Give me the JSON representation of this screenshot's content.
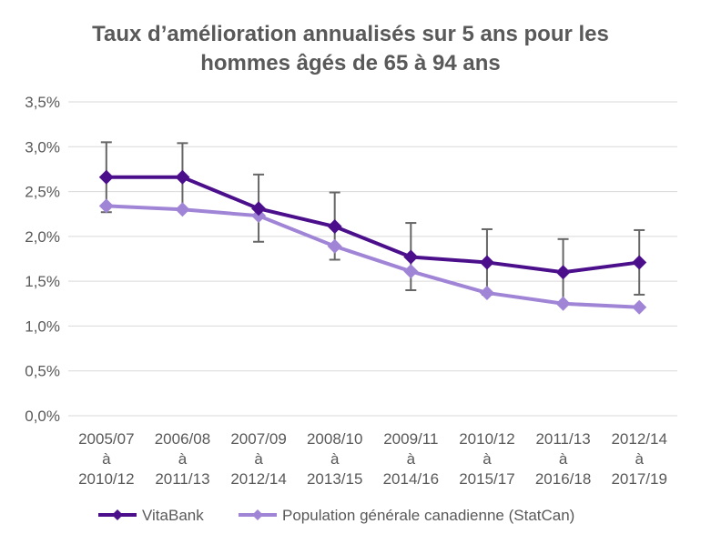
{
  "chart_data": {
    "type": "line",
    "title_lines": [
      "Taux d’amélioration annualisés sur 5 ans pour les",
      "hommes âgés de 65 à 94 ans"
    ],
    "categories": [
      [
        "2005/07",
        "à",
        "2010/12"
      ],
      [
        "2006/08",
        "à",
        "2011/13"
      ],
      [
        "2007/09",
        "à",
        "2012/14"
      ],
      [
        "2008/10",
        "à",
        "2013/15"
      ],
      [
        "2009/11",
        "à",
        "2014/16"
      ],
      [
        "2010/12",
        "à",
        "2015/17"
      ],
      [
        "2011/13",
        "à",
        "2016/18"
      ],
      [
        "2012/14",
        "à",
        "2017/19"
      ]
    ],
    "ylim": [
      0,
      3.5
    ],
    "yticks": [
      0,
      0.5,
      1.0,
      1.5,
      2.0,
      2.5,
      3.0,
      3.5
    ],
    "ytick_labels": [
      "0,0%",
      "0,5%",
      "1,0%",
      "1,5%",
      "2,0%",
      "2,5%",
      "3,0%",
      "3,5%"
    ],
    "grid": true,
    "legend_position": "bottom",
    "series": [
      {
        "name": "VitaBank",
        "color": "#4b0f8c",
        "values": [
          2.66,
          2.66,
          2.31,
          2.11,
          1.77,
          1.71,
          1.6,
          1.71
        ],
        "error_low": [
          2.27,
          2.3,
          1.94,
          1.74,
          1.4,
          1.35,
          1.24,
          1.35
        ],
        "error_high": [
          3.05,
          3.04,
          2.69,
          2.49,
          2.15,
          2.08,
          1.97,
          2.07
        ]
      },
      {
        "name": "Population générale canadienne (StatCan)",
        "color": "#a084d6",
        "values": [
          2.34,
          2.3,
          2.23,
          1.89,
          1.61,
          1.37,
          1.25,
          1.21
        ]
      }
    ],
    "error_bar_color": "#666666"
  }
}
